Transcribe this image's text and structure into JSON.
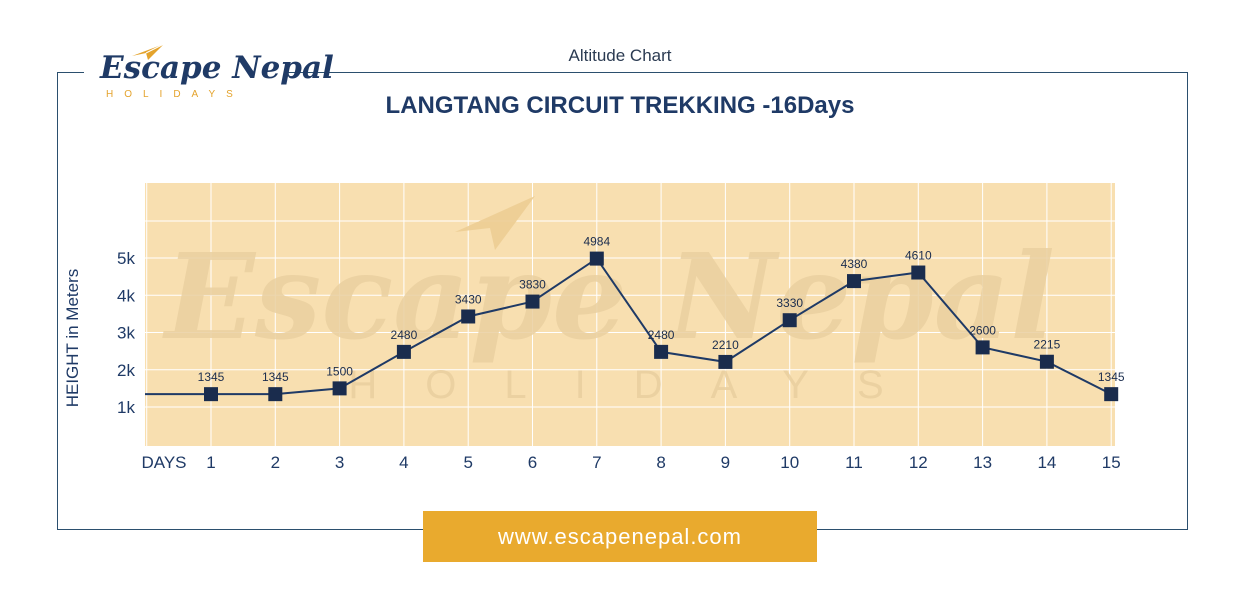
{
  "header": {
    "logo_main": "Escape Nepal",
    "logo_sub": "HOLIDAYS",
    "subtitle": "Altitude Chart",
    "title": "LANGTANG CIRCUIT TREKKING -16Days"
  },
  "watermark": {
    "main": "Escape Nepal",
    "sub": "HOLIDAYS"
  },
  "footer": {
    "url": "www.escapenepal.com"
  },
  "colors": {
    "plot_bg": "#f8dfb0",
    "line": "#1f3a66",
    "marker": "#1a2c4d",
    "frame": "#2b4f6e",
    "accent": "#e9aa2e"
  },
  "chart_data": {
    "type": "line",
    "x_prefix_label": "DAYS",
    "ylabel": "HEIGHT in Meters",
    "categories": [
      "1",
      "2",
      "3",
      "4",
      "5",
      "6",
      "7",
      "8",
      "9",
      "10",
      "11",
      "12",
      "13",
      "14",
      "15"
    ],
    "x": [
      1,
      2,
      3,
      4,
      5,
      6,
      7,
      8,
      9,
      10,
      11,
      12,
      13,
      14,
      15
    ],
    "values": [
      1345,
      1345,
      1500,
      2480,
      3430,
      3830,
      4984,
      2480,
      2210,
      3330,
      4380,
      4610,
      2600,
      2215,
      1345
    ],
    "value_labels": [
      "1345",
      "1345",
      "1500",
      "2480",
      "3430",
      "3830",
      "4984",
      "2480",
      "2210",
      "3330",
      "4380",
      "4610",
      "2600",
      "2215",
      "1345"
    ],
    "y_ticks": [
      1000,
      2000,
      3000,
      4000,
      5000
    ],
    "y_tick_labels": [
      "1k",
      "2k",
      "3k",
      "4k",
      "5k"
    ],
    "ylim": [
      0,
      7000
    ],
    "grid": true
  }
}
